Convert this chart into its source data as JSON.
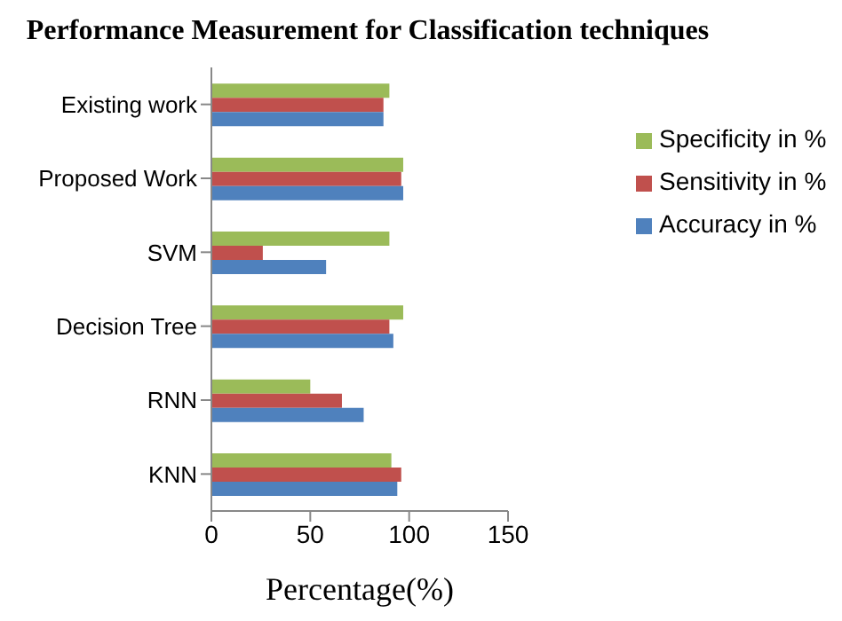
{
  "chart_data": {
    "type": "bar",
    "orientation": "horizontal",
    "title": "Performance  Measurement for Classification techniques",
    "xlabel": "Percentage(%)",
    "categories": [
      "Existing work",
      "Proposed Work",
      "SVM",
      "Decision Tree",
      "RNN",
      "KNN"
    ],
    "series": [
      {
        "name": "Specificity in %",
        "color": "#9bbb59",
        "values": [
          90,
          97,
          90,
          97,
          50,
          91
        ]
      },
      {
        "name": "Sensitivity in %",
        "color": "#c0504d",
        "values": [
          87,
          96,
          26,
          90,
          66,
          96
        ]
      },
      {
        "name": "Accuracy in %",
        "color": "#4f81bd",
        "values": [
          87,
          97,
          58,
          92,
          77,
          94
        ]
      }
    ],
    "xlim": [
      0,
      150
    ],
    "xticks": [
      0,
      50,
      100,
      150
    ],
    "grid": false,
    "legend": "top right"
  }
}
